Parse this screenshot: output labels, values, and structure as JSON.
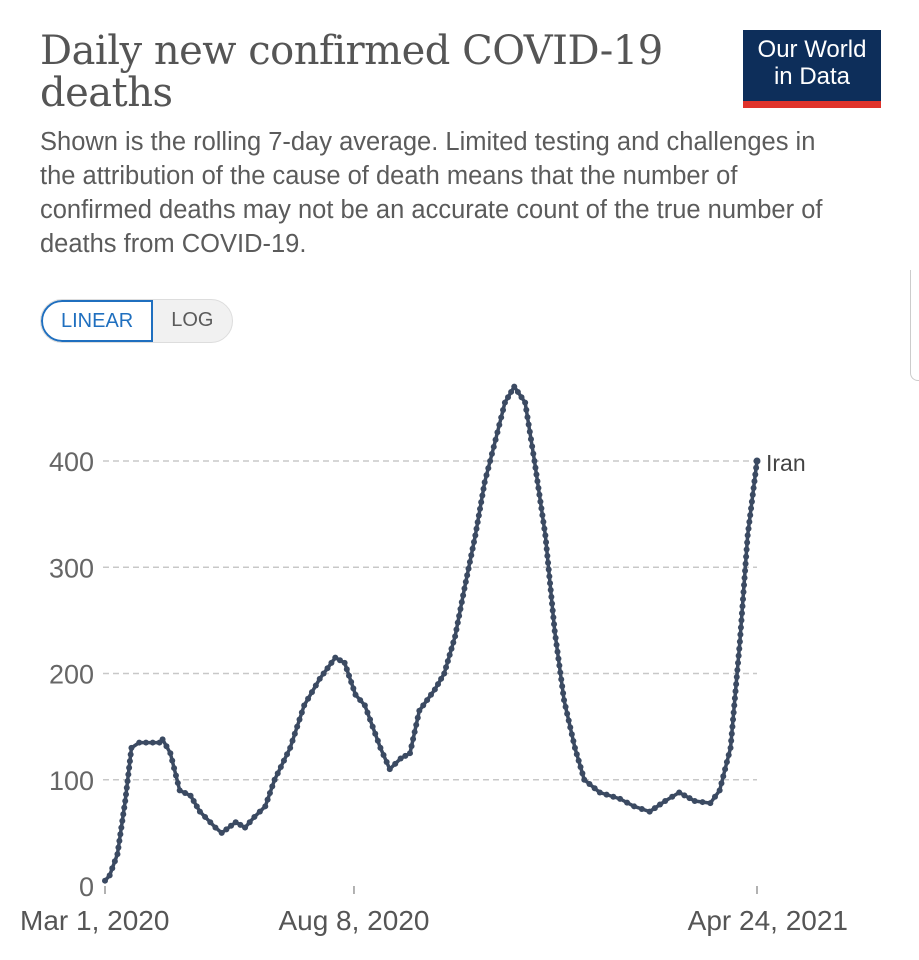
{
  "header": {
    "title": "Daily new confirmed COVID-19 deaths",
    "subtitle": "Shown is the rolling 7-day average. Limited testing and challenges in the attribution of the cause of death means that the number of confirmed deaths may not be an accurate count of the true number of deaths from COVID-19.",
    "logo_line1": "Our World",
    "logo_line2": "in Data"
  },
  "scale_toggle": {
    "linear_label": "LINEAR",
    "log_label": "LOG",
    "selected": "LINEAR"
  },
  "colors": {
    "series": "#3b4a62",
    "logo_bg": "#0d2e5a",
    "logo_accent": "#e0332b",
    "toggle_active": "#1f6fbf"
  },
  "chart_data": {
    "type": "line",
    "title": "Daily new confirmed COVID-19 deaths",
    "xlabel": "",
    "ylabel": "",
    "xlim": [
      "2020-03-01",
      "2021-04-24"
    ],
    "ylim": [
      0,
      470
    ],
    "x_ticks": [
      "Mar 1, 2020",
      "Aug 8, 2020",
      "Apr 24, 2021"
    ],
    "x_tick_dates": [
      "2020-03-01",
      "2020-08-08",
      "2021-04-24"
    ],
    "y_ticks": [
      0,
      100,
      200,
      300,
      400
    ],
    "grid": "horizontal dashed",
    "series": [
      {
        "name": "Iran",
        "points": [
          [
            "2020-03-01",
            5
          ],
          [
            "2020-03-04",
            10
          ],
          [
            "2020-03-09",
            30
          ],
          [
            "2020-03-14",
            80
          ],
          [
            "2020-03-18",
            130
          ],
          [
            "2020-03-23",
            135
          ],
          [
            "2020-04-05",
            135
          ],
          [
            "2020-04-07",
            138
          ],
          [
            "2020-04-12",
            125
          ],
          [
            "2020-04-18",
            90
          ],
          [
            "2020-04-25",
            85
          ],
          [
            "2020-05-01",
            70
          ],
          [
            "2020-05-11",
            55
          ],
          [
            "2020-05-15",
            50
          ],
          [
            "2020-05-24",
            60
          ],
          [
            "2020-05-30",
            55
          ],
          [
            "2020-06-05",
            65
          ],
          [
            "2020-06-12",
            75
          ],
          [
            "2020-06-18",
            100
          ],
          [
            "2020-06-28",
            130
          ],
          [
            "2020-07-07",
            170
          ],
          [
            "2020-07-17",
            195
          ],
          [
            "2020-07-27",
            215
          ],
          [
            "2020-08-02",
            210
          ],
          [
            "2020-08-09",
            180
          ],
          [
            "2020-08-15",
            170
          ],
          [
            "2020-08-25",
            130
          ],
          [
            "2020-08-31",
            110
          ],
          [
            "2020-09-07",
            120
          ],
          [
            "2020-09-13",
            125
          ],
          [
            "2020-09-19",
            165
          ],
          [
            "2020-09-29",
            185
          ],
          [
            "2020-10-05",
            200
          ],
          [
            "2020-10-12",
            235
          ],
          [
            "2020-10-18",
            280
          ],
          [
            "2020-10-25",
            330
          ],
          [
            "2020-10-31",
            380
          ],
          [
            "2020-11-07",
            420
          ],
          [
            "2020-11-13",
            455
          ],
          [
            "2020-11-19",
            470
          ],
          [
            "2020-11-26",
            455
          ],
          [
            "2020-12-02",
            400
          ],
          [
            "2020-12-09",
            330
          ],
          [
            "2020-12-15",
            240
          ],
          [
            "2020-12-21",
            175
          ],
          [
            "2020-12-28",
            130
          ],
          [
            "2021-01-03",
            100
          ],
          [
            "2021-01-13",
            88
          ],
          [
            "2021-01-26",
            82
          ],
          [
            "2021-02-04",
            75
          ],
          [
            "2021-02-14",
            70
          ],
          [
            "2021-02-24",
            80
          ],
          [
            "2021-03-05",
            88
          ],
          [
            "2021-03-15",
            80
          ],
          [
            "2021-03-25",
            78
          ],
          [
            "2021-03-31",
            90
          ],
          [
            "2021-04-07",
            130
          ],
          [
            "2021-04-13",
            230
          ],
          [
            "2021-04-18",
            330
          ],
          [
            "2021-04-24",
            400
          ]
        ]
      }
    ]
  }
}
